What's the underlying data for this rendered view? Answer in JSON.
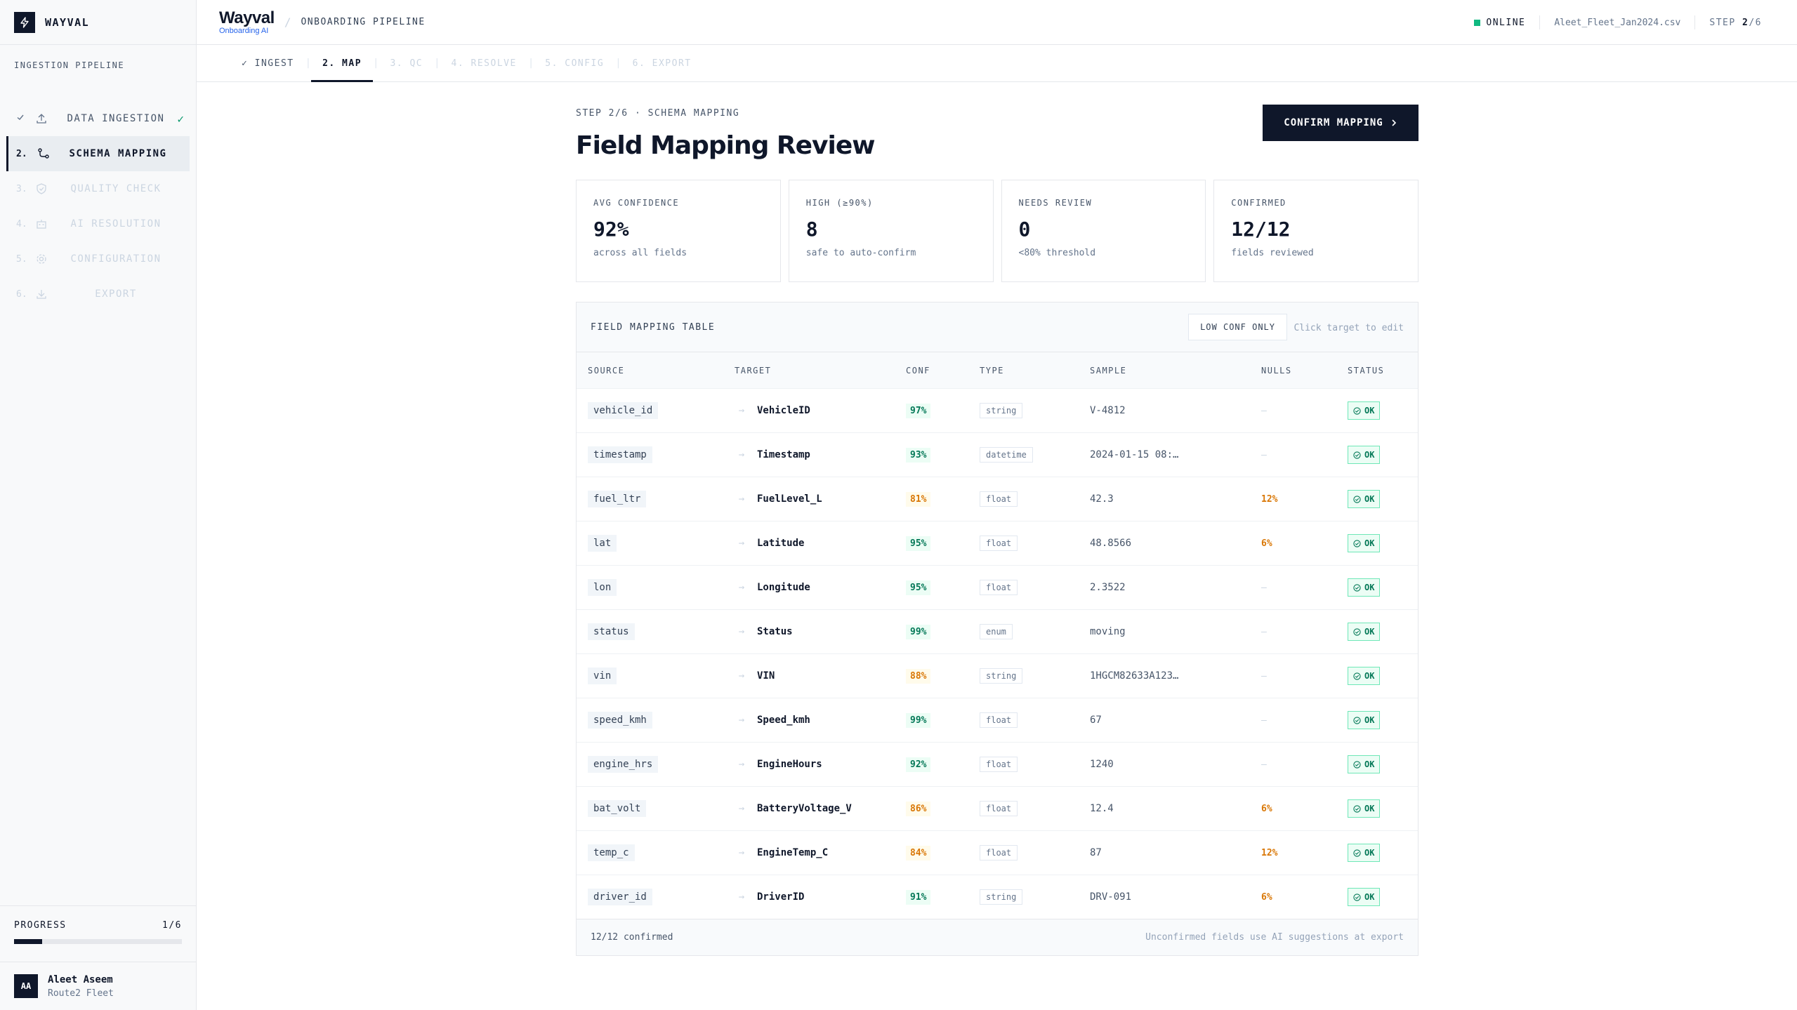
{
  "brand": {
    "name": "WAYVAL",
    "logo_icon": "bolt-icon"
  },
  "sidebar": {
    "section_title": "INGESTION PIPELINE",
    "items": [
      {
        "num": "",
        "label": "DATA INGESTION",
        "icon": "upload-icon",
        "state": "done",
        "tick": "✓"
      },
      {
        "num": "2.",
        "label": "SCHEMA MAPPING",
        "icon": "branch-icon",
        "state": "active",
        "tick": ""
      },
      {
        "num": "3.",
        "label": "QUALITY CHECK",
        "icon": "shield-check-icon",
        "state": "disabled",
        "tick": ""
      },
      {
        "num": "4.",
        "label": "AI RESOLUTION",
        "icon": "robot-icon",
        "state": "disabled",
        "tick": ""
      },
      {
        "num": "5.",
        "label": "CONFIGURATION",
        "icon": "gear-icon",
        "state": "disabled",
        "tick": ""
      },
      {
        "num": "6.",
        "label": "EXPORT",
        "icon": "download-icon",
        "state": "disabled",
        "tick": ""
      }
    ],
    "progress": {
      "label": "PROGRESS",
      "count": "1/6",
      "fraction": 0.1667
    },
    "user": {
      "initials": "AA",
      "name": "Aleet Aseem",
      "org": "Route2 Fleet"
    }
  },
  "header": {
    "wordmark": "Wayval",
    "wordmark_sub": "Onboarding AI",
    "separator": "/",
    "breadcrumb": "ONBOARDING PIPELINE",
    "status": "ONLINE",
    "status_color": "#10b981",
    "file_name": "Aleet_Fleet_Jan2024.csv",
    "step_prefix": "STEP ",
    "step_current": "2",
    "step_total": "/6"
  },
  "tabs": [
    {
      "label": "✓ INGEST",
      "state": "done"
    },
    {
      "label": "2. MAP",
      "state": "active"
    },
    {
      "label": "3. QC",
      "state": "disabled"
    },
    {
      "label": "4. RESOLVE",
      "state": "disabled"
    },
    {
      "label": "5. CONFIG",
      "state": "disabled"
    },
    {
      "label": "6. EXPORT",
      "state": "disabled"
    }
  ],
  "main": {
    "step_line": "STEP 2/6 · SCHEMA MAPPING",
    "title": "Field Mapping Review",
    "confirm_label": "CONFIRM MAPPING",
    "stats": [
      {
        "label": "AVG CONFIDENCE",
        "value": "92%",
        "sub": "across all fields"
      },
      {
        "label": "HIGH (≥90%)",
        "value": "8",
        "sub": "safe to auto-confirm"
      },
      {
        "label": "NEEDS REVIEW",
        "value": "0",
        "sub": "<80% threshold"
      },
      {
        "label": "CONFIRMED",
        "value": "12/12",
        "sub": "fields reviewed"
      }
    ],
    "table": {
      "title": "FIELD MAPPING TABLE",
      "filter_label": "LOW CONF ONLY",
      "edit_hint": "Click target to edit",
      "columns": [
        "SOURCE",
        "TARGET",
        "CONF",
        "TYPE",
        "SAMPLE",
        "NULLS",
        "STATUS"
      ],
      "rows": [
        {
          "source": "vehicle_id",
          "target": "VehicleID",
          "conf": "97%",
          "conf_level": "hi",
          "type": "string",
          "sample": "V-4812",
          "nulls": "—",
          "nulls_warn": false,
          "status": "OK"
        },
        {
          "source": "timestamp",
          "target": "Timestamp",
          "conf": "93%",
          "conf_level": "hi",
          "type": "datetime",
          "sample": "2024-01-15 08:…",
          "nulls": "—",
          "nulls_warn": false,
          "status": "OK"
        },
        {
          "source": "fuel_ltr",
          "target": "FuelLevel_L",
          "conf": "81%",
          "conf_level": "mid",
          "type": "float",
          "sample": "42.3",
          "nulls": "12%",
          "nulls_warn": true,
          "status": "OK"
        },
        {
          "source": "lat",
          "target": "Latitude",
          "conf": "95%",
          "conf_level": "hi",
          "type": "float",
          "sample": "48.8566",
          "nulls": "6%",
          "nulls_warn": true,
          "status": "OK"
        },
        {
          "source": "lon",
          "target": "Longitude",
          "conf": "95%",
          "conf_level": "hi",
          "type": "float",
          "sample": "2.3522",
          "nulls": "—",
          "nulls_warn": false,
          "status": "OK"
        },
        {
          "source": "status",
          "target": "Status",
          "conf": "99%",
          "conf_level": "hi",
          "type": "enum",
          "sample": "moving",
          "nulls": "—",
          "nulls_warn": false,
          "status": "OK"
        },
        {
          "source": "vin",
          "target": "VIN",
          "conf": "88%",
          "conf_level": "mid",
          "type": "string",
          "sample": "1HGCM82633A123…",
          "nulls": "—",
          "nulls_warn": false,
          "status": "OK"
        },
        {
          "source": "speed_kmh",
          "target": "Speed_kmh",
          "conf": "99%",
          "conf_level": "hi",
          "type": "float",
          "sample": "67",
          "nulls": "—",
          "nulls_warn": false,
          "status": "OK"
        },
        {
          "source": "engine_hrs",
          "target": "EngineHours",
          "conf": "92%",
          "conf_level": "hi",
          "type": "float",
          "sample": "1240",
          "nulls": "—",
          "nulls_warn": false,
          "status": "OK"
        },
        {
          "source": "bat_volt",
          "target": "BatteryVoltage_V",
          "conf": "86%",
          "conf_level": "mid",
          "type": "float",
          "sample": "12.4",
          "nulls": "6%",
          "nulls_warn": true,
          "status": "OK"
        },
        {
          "source": "temp_c",
          "target": "EngineTemp_C",
          "conf": "84%",
          "conf_level": "mid",
          "type": "float",
          "sample": "87",
          "nulls": "12%",
          "nulls_warn": true,
          "status": "OK"
        },
        {
          "source": "driver_id",
          "target": "DriverID",
          "conf": "91%",
          "conf_level": "hi",
          "type": "string",
          "sample": "DRV-091",
          "nulls": "6%",
          "nulls_warn": true,
          "status": "OK"
        }
      ],
      "footer_left": "12/12 confirmed",
      "footer_right": "Unconfirmed fields use AI suggestions at export"
    }
  }
}
